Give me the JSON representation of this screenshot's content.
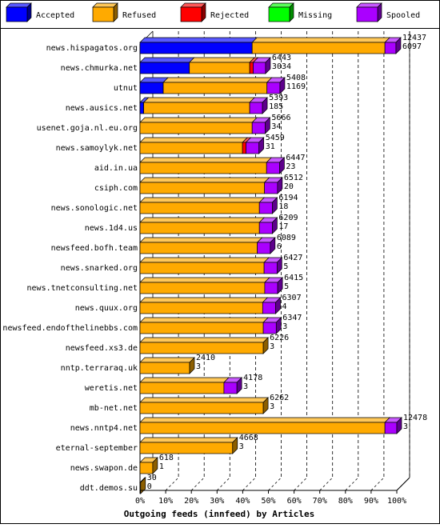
{
  "chart_data": {
    "type": "bar",
    "stacked": true,
    "orientation": "horizontal",
    "xlabel": "Outgoing feeds (innfeed) by Articles",
    "xticks": [
      "0%",
      "10%",
      "20%",
      "30%",
      "40%",
      "50%",
      "60%",
      "70%",
      "80%",
      "90%",
      "100%"
    ],
    "xlim": [
      0,
      12478
    ],
    "grid": "vertical dashed",
    "legend_position": "top",
    "series": [
      {
        "name": "Accepted",
        "color": "#0000ff"
      },
      {
        "name": "Refused",
        "color": "#ffaa00"
      },
      {
        "name": "Rejected",
        "color": "#ff0000"
      },
      {
        "name": "Missing",
        "color": "#00ff00"
      },
      {
        "name": "Spooled",
        "color": "#aa00ff"
      }
    ],
    "categories": [
      "news.hispagatos.org",
      "news.chmurka.net",
      "utnut",
      "news.ausics.net",
      "usenet.goja.nl.eu.org",
      "news.samoylyk.net",
      "aid.in.ua",
      "csiph.com",
      "news.sonologic.net",
      "news.1d4.us",
      "newsfeed.bofh.team",
      "news.snarked.org",
      "news.tnetconsulting.net",
      "news.quux.org",
      "newsfeed.endofthelinebbs.com",
      "newsfeed.xs3.de",
      "nntp.terraraq.uk",
      "weretis.net",
      "mb-net.net",
      "news.nntp4.net",
      "eternal-september",
      "news.swapon.de",
      "ddt.demos.su"
    ],
    "rows": [
      {
        "total": 12437,
        "second": 6097,
        "accepted": 5450,
        "refused": 6450,
        "rejected": 0,
        "missing": 0,
        "spooled": 537
      },
      {
        "total": 6443,
        "second": 3034,
        "accepted": 2400,
        "refused": 2930,
        "rejected": 170,
        "missing": 0,
        "spooled": 600
      },
      {
        "total": 5408,
        "second": 1169,
        "accepted": 1130,
        "refused": 5040,
        "rejected": 0,
        "missing": 0,
        "spooled": 630
      },
      {
        "total": 5393,
        "second": 185,
        "accepted": 180,
        "refused": 5150,
        "rejected": 0,
        "missing": 0,
        "spooled": 620
      },
      {
        "total": 5666,
        "second": 34,
        "accepted": 0,
        "refused": 5450,
        "rejected": 0,
        "missing": 0,
        "spooled": 630
      },
      {
        "total": 5459,
        "second": 31,
        "accepted": 0,
        "refused": 4980,
        "rejected": 170,
        "missing": 0,
        "spooled": 630
      },
      {
        "total": 6447,
        "second": 23,
        "accepted": 0,
        "refused": 6150,
        "rejected": 0,
        "missing": 0,
        "spooled": 630
      },
      {
        "total": 6512,
        "second": 20,
        "accepted": 0,
        "refused": 6050,
        "rejected": 0,
        "missing": 0,
        "spooled": 630
      },
      {
        "total": 6194,
        "second": 18,
        "accepted": 0,
        "refused": 5800,
        "rejected": 0,
        "missing": 0,
        "spooled": 630
      },
      {
        "total": 6209,
        "second": 17,
        "accepted": 0,
        "refused": 5800,
        "rejected": 0,
        "missing": 0,
        "spooled": 630
      },
      {
        "total": 6089,
        "second": 6,
        "accepted": 0,
        "refused": 5700,
        "rejected": 0,
        "missing": 0,
        "spooled": 630
      },
      {
        "total": 6427,
        "second": 5,
        "accepted": 0,
        "refused": 6030,
        "rejected": 0,
        "missing": 0,
        "spooled": 630
      },
      {
        "total": 6415,
        "second": 5,
        "accepted": 0,
        "refused": 6060,
        "rejected": 0,
        "missing": 0,
        "spooled": 630
      },
      {
        "total": 6307,
        "second": 4,
        "accepted": 0,
        "refused": 5960,
        "rejected": 0,
        "missing": 0,
        "spooled": 630
      },
      {
        "total": 6347,
        "second": 3,
        "accepted": 0,
        "refused": 5990,
        "rejected": 0,
        "missing": 0,
        "spooled": 630
      },
      {
        "total": 6226,
        "second": 3,
        "accepted": 0,
        "refused": 5990,
        "rejected": 0,
        "missing": 0,
        "spooled": 0
      },
      {
        "total": 2410,
        "second": 3,
        "accepted": 0,
        "refused": 2410,
        "rejected": 0,
        "missing": 0,
        "spooled": 0
      },
      {
        "total": 4178,
        "second": 3,
        "accepted": 0,
        "refused": 4080,
        "rejected": 0,
        "missing": 0,
        "spooled": 630
      },
      {
        "total": 6262,
        "second": 3,
        "accepted": 0,
        "refused": 5990,
        "rejected": 0,
        "missing": 0,
        "spooled": 0
      },
      {
        "total": 12478,
        "second": 3,
        "accepted": 0,
        "refused": 11900,
        "rejected": 0,
        "missing": 0,
        "spooled": 578
      },
      {
        "total": 4668,
        "second": 3,
        "accepted": 0,
        "refused": 4500,
        "rejected": 0,
        "missing": 0,
        "spooled": 0
      },
      {
        "total": 618,
        "second": 1,
        "accepted": 0,
        "refused": 618,
        "rejected": 0,
        "missing": 0,
        "spooled": 0
      },
      {
        "total": 30,
        "second": 0,
        "accepted": 0,
        "refused": 30,
        "rejected": 0,
        "missing": 0,
        "spooled": 0
      }
    ]
  }
}
